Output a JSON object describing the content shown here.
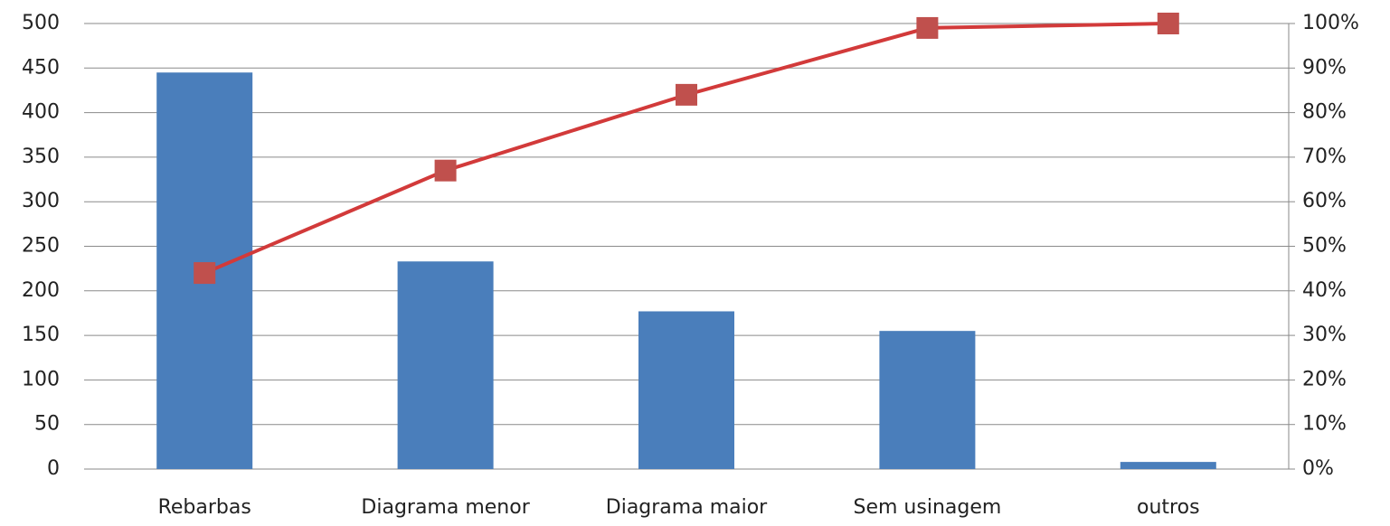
{
  "chart_data": {
    "type": "bar",
    "categories": [
      "Rebarbas",
      "Diagrama menor",
      "Diagrama maior",
      "Sem usinagem",
      "outros"
    ],
    "series": [
      {
        "color": "#4a7ebb",
        "values": [
          445,
          233,
          177,
          155,
          8
        ]
      },
      {
        "color": "#c0504d",
        "type": "line",
        "axis": "y2",
        "values": [
          44,
          67,
          84,
          99,
          100
        ]
      }
    ],
    "ylim": [
      0,
      500
    ],
    "yticks": [
      0,
      50,
      100,
      150,
      200,
      250,
      300,
      350,
      400,
      450,
      500
    ],
    "y2lim": [
      0,
      100
    ],
    "y2ticks": [
      {
        "value": 0,
        "label": "0%"
      },
      {
        "value": 10,
        "label": "10%"
      },
      {
        "value": 20,
        "label": "20%"
      },
      {
        "value": 30,
        "label": "30%"
      },
      {
        "value": 40,
        "label": "40%"
      },
      {
        "value": 50,
        "label": "50%"
      },
      {
        "value": 60,
        "label": "60%"
      },
      {
        "value": 70,
        "label": "70%"
      },
      {
        "value": 80,
        "label": "80%"
      },
      {
        "value": 90,
        "label": "90%"
      },
      {
        "value": 100,
        "label": "100%"
      }
    ],
    "grid": true
  }
}
